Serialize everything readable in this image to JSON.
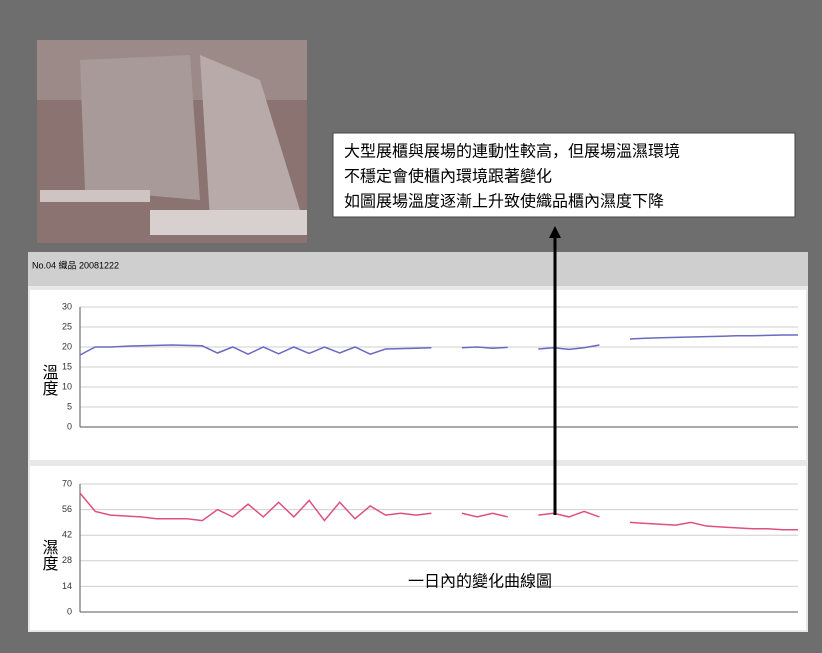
{
  "callout": [
    "大型展櫃與展場的連動性較高，但展場溫濕環境",
    "不穩定會使櫃內環境跟著變化",
    "如圖展場溫度逐漸上升致使織品櫃內濕度下降"
  ],
  "header": "No.04 織品 20081222",
  "caption": "一日內的變化曲線圖",
  "chart_data": [
    {
      "type": "line",
      "y_label": "溫度",
      "x": [
        0,
        1,
        2,
        3,
        4,
        5,
        6,
        7,
        8,
        9,
        10,
        11,
        12,
        13,
        14,
        15,
        16,
        17,
        18,
        19,
        20,
        21,
        22,
        23,
        24,
        25,
        26,
        27,
        28,
        29,
        30,
        31,
        32,
        33,
        34,
        35,
        36,
        37,
        38,
        39,
        40,
        41,
        42,
        43,
        44,
        45,
        46,
        47
      ],
      "xlim": [
        0,
        47
      ],
      "ylim": [
        0,
        30
      ],
      "yticks": [
        0,
        5,
        10,
        15,
        20,
        25,
        30
      ],
      "grid": true,
      "series": [
        {
          "color": "#6a6ac0",
          "values": [
            18,
            20,
            20,
            20.2,
            20.3,
            20.4,
            20.5,
            20.4,
            20.3,
            18.5,
            20,
            18.2,
            20,
            18.3,
            20,
            18.4,
            20,
            18.5,
            20,
            18.2,
            19.5,
            19.6,
            19.7,
            19.8,
            null,
            19.8,
            20,
            19.7,
            19.9,
            null,
            19.5,
            19.8,
            19.4,
            19.8,
            20.5,
            null,
            22,
            22.2,
            22.3,
            22.4,
            22.5,
            22.6,
            22.7,
            22.8,
            22.8,
            22.9,
            23,
            23
          ]
        }
      ]
    },
    {
      "type": "line",
      "y_label": "濕度",
      "x": [
        0,
        1,
        2,
        3,
        4,
        5,
        6,
        7,
        8,
        9,
        10,
        11,
        12,
        13,
        14,
        15,
        16,
        17,
        18,
        19,
        20,
        21,
        22,
        23,
        24,
        25,
        26,
        27,
        28,
        29,
        30,
        31,
        32,
        33,
        34,
        35,
        36,
        37,
        38,
        39,
        40,
        41,
        42,
        43,
        44,
        45,
        46,
        47
      ],
      "xlim": [
        0,
        47
      ],
      "ylim": [
        0,
        70
      ],
      "yticks": [
        0,
        14,
        28,
        42,
        56,
        70
      ],
      "grid": true,
      "series": [
        {
          "color": "#e0507f",
          "values": [
            65,
            55,
            53,
            52.5,
            52,
            51,
            51,
            51,
            50,
            56,
            52,
            59,
            52,
            60,
            52,
            61,
            50,
            60,
            51,
            58,
            53,
            54,
            53,
            54,
            null,
            54,
            52,
            54,
            52,
            null,
            53,
            54,
            52,
            55,
            52,
            null,
            49,
            48.5,
            48,
            47.5,
            49,
            47,
            46.5,
            46,
            45.5,
            45.5,
            45,
            45
          ]
        }
      ]
    }
  ]
}
